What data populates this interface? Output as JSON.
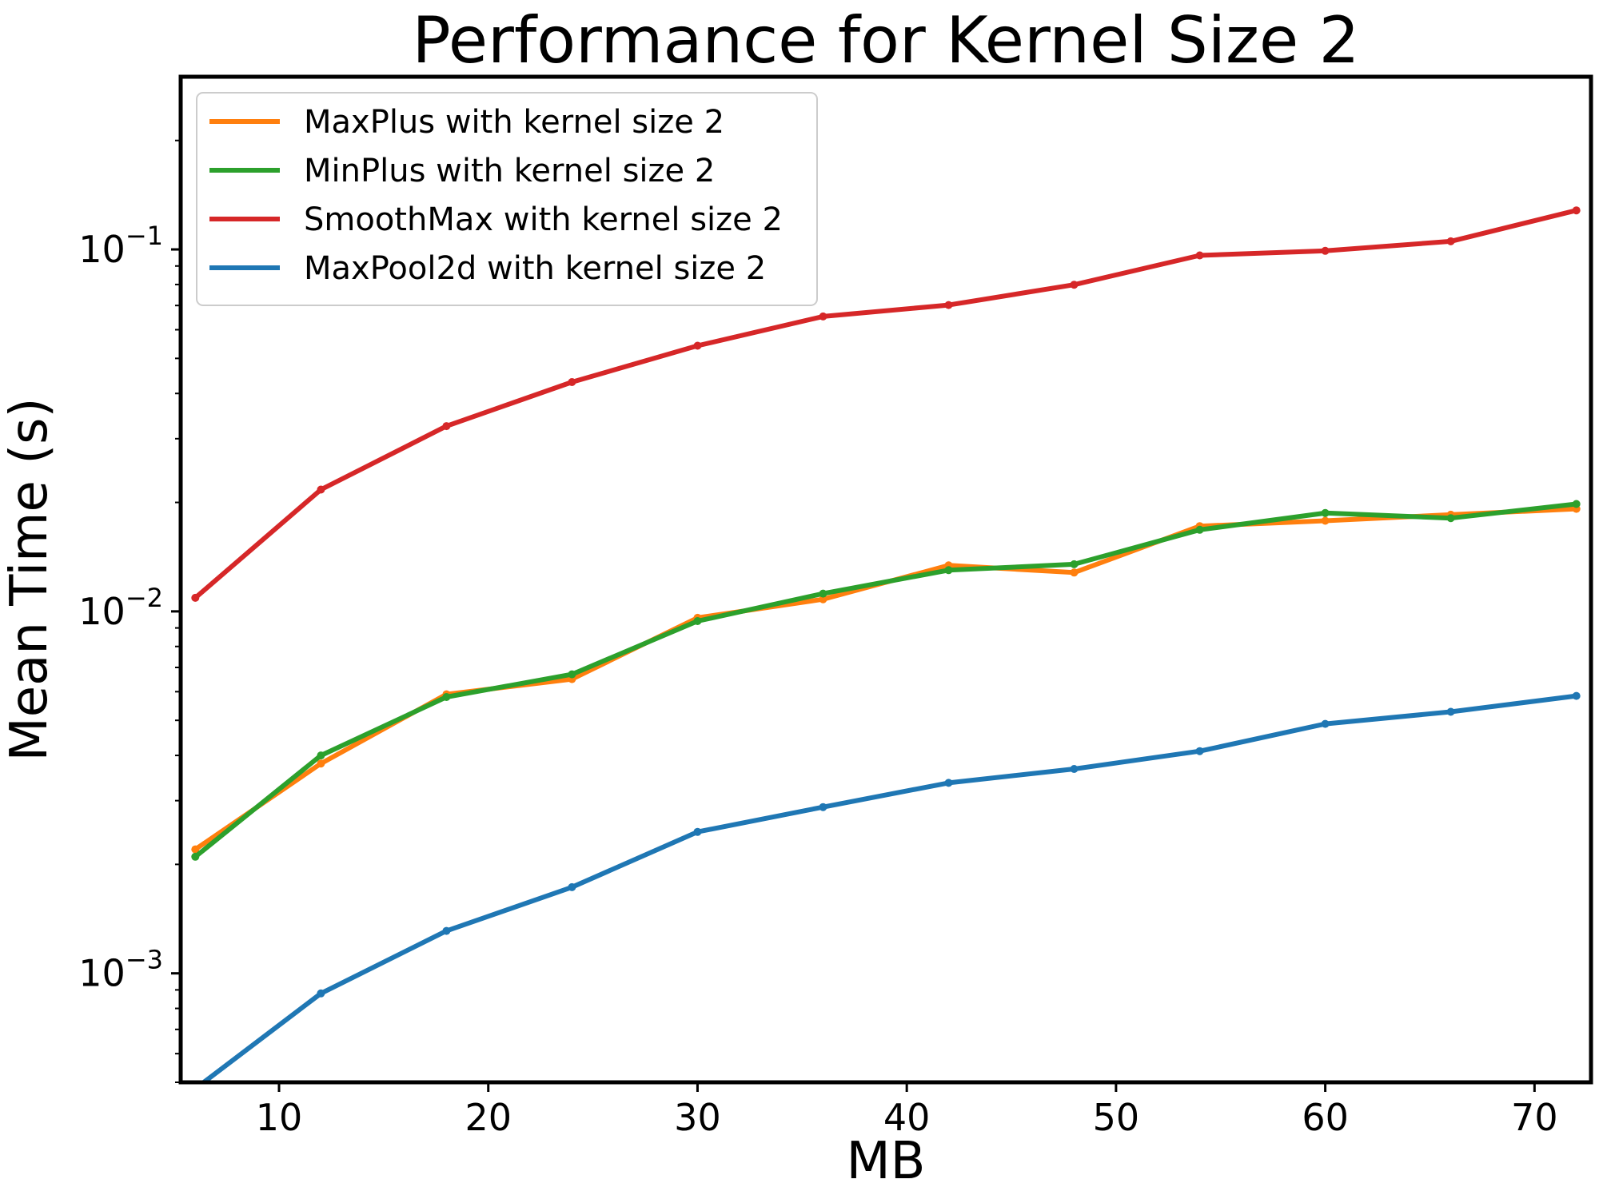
{
  "chart_data": {
    "type": "line",
    "title": "Performance for Kernel Size 2",
    "xlabel": "MB",
    "ylabel": "Mean Time (s)",
    "yscale": "log",
    "xlim": [
      5.3,
      72.7
    ],
    "ylim": [
      0.0005,
      0.3
    ],
    "grid": false,
    "legend_position": "top-left",
    "x_ticks": [
      10,
      20,
      30,
      40,
      50,
      60,
      70
    ],
    "x_tick_labels": [
      "10",
      "20",
      "30",
      "40",
      "50",
      "60",
      "70"
    ],
    "y_ticks": [
      0.001,
      0.01,
      0.1
    ],
    "y_tick_labels": [
      {
        "base": "10",
        "exp": "−3"
      },
      {
        "base": "10",
        "exp": "−2"
      },
      {
        "base": "10",
        "exp": "−1"
      }
    ],
    "x": [
      6,
      12,
      18,
      24,
      30,
      36,
      42,
      48,
      54,
      60,
      66,
      72
    ],
    "series": [
      {
        "name": "MaxPlus with kernel size 2",
        "color": "#ff7f0e",
        "values": [
          0.0022,
          0.0038,
          0.0059,
          0.0065,
          0.0096,
          0.0108,
          0.0134,
          0.0128,
          0.0172,
          0.0178,
          0.0185,
          0.0192
        ]
      },
      {
        "name": "MinPlus with kernel size 2",
        "color": "#2ca02c",
        "values": [
          0.0021,
          0.004,
          0.0058,
          0.0067,
          0.0094,
          0.0112,
          0.013,
          0.0135,
          0.0168,
          0.0187,
          0.0181,
          0.0198
        ]
      },
      {
        "name": "SmoothMax with kernel size 2",
        "color": "#d62728",
        "values": [
          0.0109,
          0.0217,
          0.0325,
          0.043,
          0.0542,
          0.0653,
          0.0702,
          0.0799,
          0.0963,
          0.0991,
          0.1053,
          0.1282
        ]
      },
      {
        "name": "MaxPool2d with kernel size 2",
        "color": "#1f77b4",
        "values": [
          0.00048,
          0.00088,
          0.00131,
          0.00173,
          0.00246,
          0.00288,
          0.00336,
          0.00367,
          0.00411,
          0.00489,
          0.00528,
          0.00584
        ]
      }
    ]
  }
}
